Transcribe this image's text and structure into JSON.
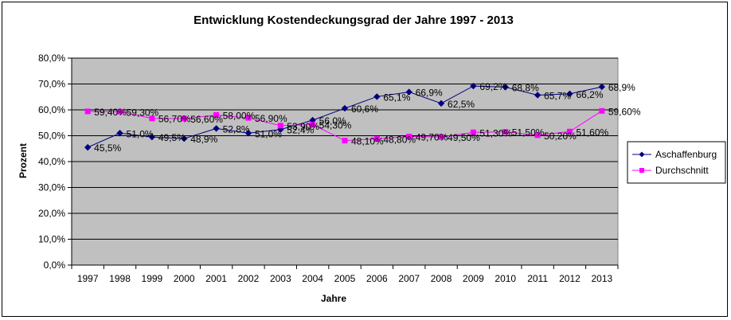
{
  "chart_data": {
    "type": "line",
    "title": "Entwicklung Kostendeckungsgrad der Jahre 1997 - 2013",
    "xlabel": "Jahre",
    "ylabel": "Prozent",
    "categories": [
      "1997",
      "1998",
      "1999",
      "2000",
      "2001",
      "2002",
      "2003",
      "2004",
      "2005",
      "2006",
      "2007",
      "2008",
      "2009",
      "2010",
      "2011",
      "2012",
      "2013"
    ],
    "ylim": [
      0,
      80
    ],
    "yticks": [
      0,
      10,
      20,
      30,
      40,
      50,
      60,
      70,
      80
    ],
    "ytick_labels": [
      "0,0%",
      "10,0%",
      "20,0%",
      "30,0%",
      "40,0%",
      "50,0%",
      "60,0%",
      "70,0%",
      "80,0%"
    ],
    "grid": true,
    "legend_position": "right",
    "series": [
      {
        "name": "Aschaffenburg",
        "color": "#000080",
        "marker": "diamond",
        "values": [
          45.5,
          51.0,
          49.5,
          48.9,
          52.8,
          51.0,
          52.4,
          56.0,
          60.6,
          65.1,
          66.9,
          62.5,
          69.2,
          68.8,
          65.7,
          66.2,
          68.9
        ],
        "labels": [
          "45,5%",
          "51,0%",
          "49,5%",
          "48,9%",
          "52,8%",
          "51,0%",
          "52,4%",
          "56,0%",
          "60,6%",
          "65,1%",
          "66,9%",
          "62,5%",
          "69,2%",
          "68,8%",
          "65,7%",
          "66,2%",
          "68,9%"
        ]
      },
      {
        "name": "Durchschnitt",
        "color": "#ff00ff",
        "marker": "square",
        "values": [
          59.4,
          59.3,
          56.7,
          56.6,
          58.0,
          56.9,
          53.9,
          54.3,
          48.1,
          48.8,
          49.7,
          49.5,
          51.3,
          51.5,
          50.2,
          51.6,
          59.6
        ],
        "labels": [
          "59,40%",
          "59,30%",
          "56,70%",
          "56,60%",
          "58,00%",
          "56,90%",
          "53,90%",
          "54,30%",
          "48,10%",
          "48,80%",
          "49,70%",
          "49,50%",
          "51,30%",
          "51,50%",
          "50,20%",
          "51,60%",
          "59,60%"
        ]
      }
    ]
  }
}
